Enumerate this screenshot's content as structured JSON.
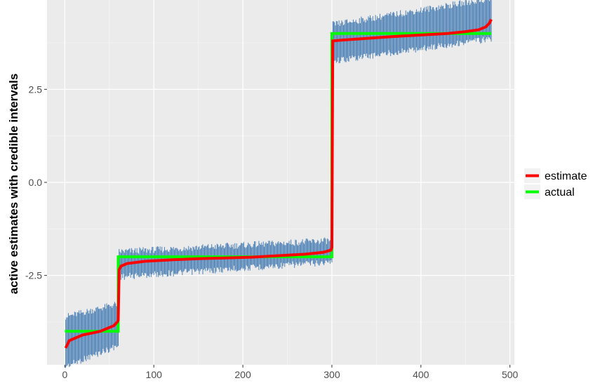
{
  "chart_data": {
    "type": "line",
    "title": "",
    "xlabel": "",
    "ylabel": "active estimates with credible intervals",
    "xlim": [
      -20,
      505
    ],
    "ylim": [
      -4.9,
      4.9
    ],
    "x_ticks": [
      0,
      100,
      200,
      300,
      400,
      500
    ],
    "x_tick_labels": [
      "0",
      "100",
      "200",
      "300",
      "400",
      "500"
    ],
    "y_ticks": [
      -2.5,
      0,
      2.5
    ],
    "y_tick_labels": [
      "-2.5",
      "0.0",
      "2.5"
    ],
    "grid": true,
    "legend_position": "right",
    "series": [
      {
        "name": "estimate",
        "color": "#ff0000",
        "style": "line",
        "points": [
          [
            1,
            -4.45
          ],
          [
            3,
            -4.35
          ],
          [
            5,
            -4.25
          ],
          [
            10,
            -4.2
          ],
          [
            20,
            -4.1
          ],
          [
            30,
            -4.05
          ],
          [
            40,
            -4.0
          ],
          [
            50,
            -3.9
          ],
          [
            55,
            -3.85
          ],
          [
            59,
            -3.75
          ],
          [
            60,
            -3.7
          ],
          [
            61,
            -2.35
          ],
          [
            63,
            -2.25
          ],
          [
            70,
            -2.18
          ],
          [
            90,
            -2.12
          ],
          [
            120,
            -2.08
          ],
          [
            150,
            -2.05
          ],
          [
            180,
            -2.03
          ],
          [
            210,
            -2.01
          ],
          [
            240,
            -1.97
          ],
          [
            270,
            -1.93
          ],
          [
            290,
            -1.88
          ],
          [
            299,
            -1.82
          ],
          [
            300,
            -1.75
          ],
          [
            301,
            3.8
          ],
          [
            310,
            3.82
          ],
          [
            340,
            3.87
          ],
          [
            370,
            3.92
          ],
          [
            400,
            3.96
          ],
          [
            430,
            4.0
          ],
          [
            450,
            4.05
          ],
          [
            465,
            4.1
          ],
          [
            473,
            4.18
          ],
          [
            477,
            4.28
          ],
          [
            479,
            4.38
          ]
        ]
      },
      {
        "name": "actual",
        "color": "#00ff00",
        "style": "step",
        "points": [
          [
            0,
            -4.0
          ],
          [
            60,
            -4.0
          ],
          [
            60,
            -2.0
          ],
          [
            300,
            -2.0
          ],
          [
            300,
            4.0
          ],
          [
            479,
            4.0
          ]
        ]
      }
    ],
    "error_bars": {
      "color": "#4a7fb5",
      "groups": [
        {
          "x_range": [
            1,
            60
          ],
          "lower_start": -4.85,
          "lower_end": -4.3,
          "upper_start": -3.7,
          "upper_end": -3.35
        },
        {
          "x_range": [
            61,
            300
          ],
          "lower_start": -2.45,
          "lower_end": -2.05,
          "upper_start": -1.95,
          "upper_end": -1.65
        },
        {
          "x_range": [
            301,
            479
          ],
          "lower_start": 3.35,
          "lower_end": 3.95,
          "upper_start": 4.15,
          "upper_end": 4.85
        }
      ]
    }
  }
}
